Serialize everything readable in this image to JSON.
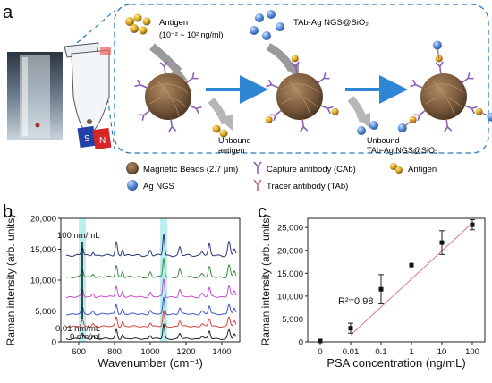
{
  "panel_a": {
    "letter": "a",
    "antigen_label": "Antigen",
    "antigen_range": "(10⁻² ~ 10² ng/ml)",
    "probe_label": "TAb-Ag NGS@SiO₂",
    "unbound_antigen_1": "Unbound",
    "unbound_antigen_2": "antigen",
    "unbound_probe_1": "Unbound",
    "unbound_probe_2": "TAb-Ag NGS@SiO₂",
    "magnet_s": "S",
    "magnet_n": "N",
    "legend": {
      "beads": "Magnetic Beads (2.7 μm)",
      "cab": "Capture antibody (CAb)",
      "antigen": "Antigen",
      "ngs": "Ag NGS",
      "tab": "Tracer antibody (TAb)"
    },
    "colors": {
      "bead": "#7a5a3c",
      "ngs": "#5b8fd6",
      "antigen": "#d9a520",
      "arrow": "#2f86d4",
      "dash": "#2a7ac0",
      "magnet_blue": "#2441a8",
      "magnet_red": "#d42626"
    }
  },
  "panel_b": {
    "letter": "b",
    "label_top": "100 nm/mL",
    "label_mid": "0.01 nm/mL",
    "label_bottom": "0 nm/mL",
    "colors": [
      "#222222",
      "#d9413b",
      "#3b54c8",
      "#c74bd0",
      "#3a8d3a",
      "#27327a"
    ],
    "highlight_color": "#9fe5e8"
  },
  "panel_c": {
    "letter": "c",
    "r2_label": "R²=0.98",
    "fit_color": "#e07b7b"
  },
  "chart_data": [
    {
      "type": "line",
      "xlabel": "Wavenumber (cm⁻¹)",
      "ylabel": "Raman intensity (arb. units)",
      "xlim": [
        500,
        1500
      ],
      "ylim": [
        0,
        20000
      ],
      "xticks": [
        "600",
        "800",
        "1000",
        "1200",
        "1400"
      ],
      "yticks": [
        "0",
        "5,000",
        "10,000",
        "15,000",
        "20,000"
      ],
      "highlight_bands": [
        620,
        1075
      ],
      "series": [
        {
          "baseline": 500,
          "scale": 1.0
        },
        {
          "baseline": 2500,
          "scale": 1.05
        },
        {
          "baseline": 4500,
          "scale": 1.1
        },
        {
          "baseline": 7300,
          "scale": 1.2
        },
        {
          "baseline": 10500,
          "scale": 1.3
        },
        {
          "baseline": 14000,
          "scale": 1.45
        }
      ]
    },
    {
      "type": "scatter",
      "xlabel": "PSA concentration (ng/mL)",
      "ylabel": "Raman intensity (arb. units)",
      "categories": [
        "0",
        "0.01",
        "0.1",
        "1",
        "10",
        "100"
      ],
      "ylim": [
        0,
        27000
      ],
      "yticks": [
        "0",
        "5,000",
        "10,000",
        "15,000",
        "20,000",
        "25,000"
      ],
      "values": [
        200,
        3000,
        11500,
        16800,
        21700,
        25600
      ],
      "errors": [
        0,
        1100,
        3200,
        0,
        2600,
        1100
      ],
      "fit": {
        "x_from": "0.01",
        "y_from": 1500,
        "x_to": "100",
        "y_to": 26000
      }
    }
  ]
}
